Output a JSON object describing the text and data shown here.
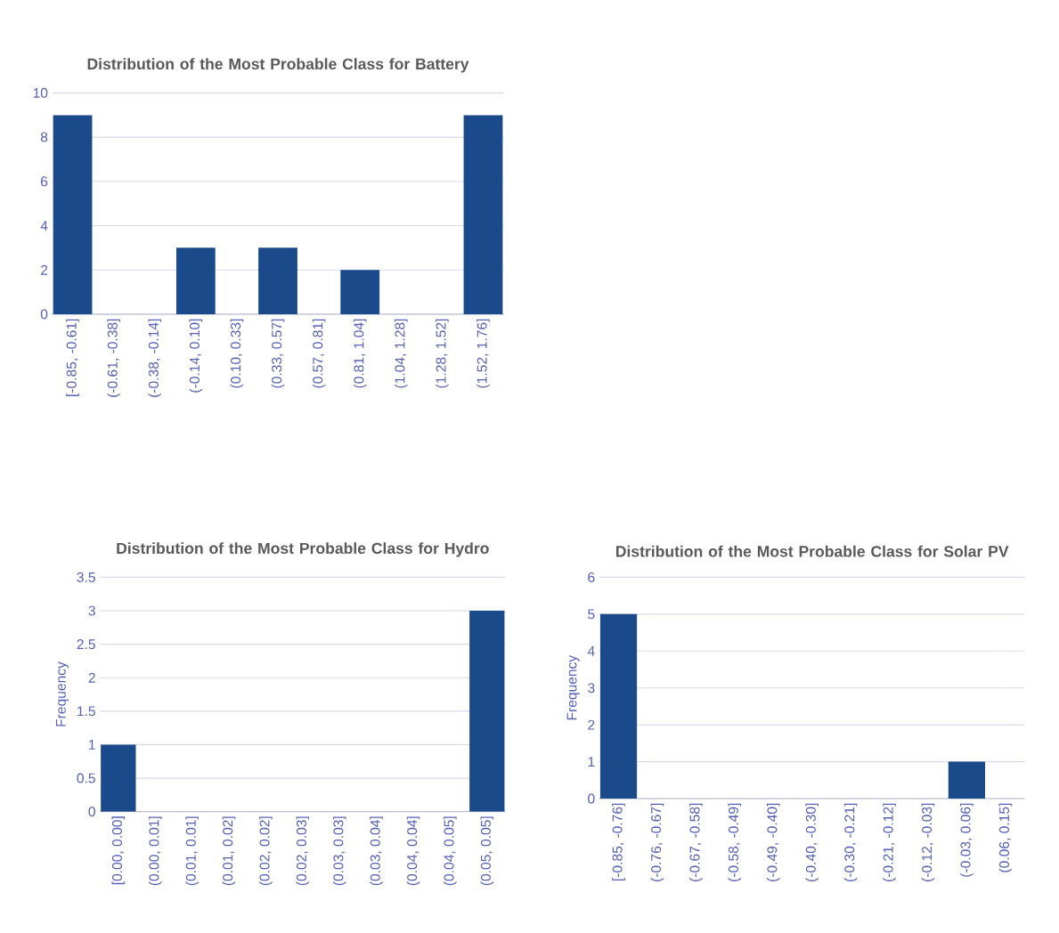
{
  "chart_data": [
    {
      "type": "bar",
      "title": "Distribution  of the Most Probable Class for Battery",
      "categories": [
        "[-0.85, -0.61]",
        "(-0.61, -0.38]",
        "(-0.38, -0.14]",
        "(-0.14, 0.10]",
        "(0.10, 0.33]",
        "(0.33, 0.57]",
        "(0.57, 0.81]",
        "(0.81, 1.04]",
        "(1.04, 1.28]",
        "(1.28, 1.52]",
        "(1.52, 1.76]"
      ],
      "values": [
        9,
        0,
        0,
        3,
        0,
        3,
        0,
        2,
        0,
        0,
        9
      ],
      "color": "#1b4a8a",
      "ylim": [
        0,
        10
      ],
      "yticks": [
        0,
        2,
        4,
        6,
        8,
        10
      ],
      "grid": "y"
    },
    {
      "type": "bar",
      "title": "Distribution of the Most Probable Class for Hydro",
      "ylabel": "Frequency",
      "categories": [
        "[0.00, 0.00]",
        "(0.00, 0.01]",
        "(0.01, 0.01]",
        "(0.01, 0.02]",
        "(0.02, 0.02]",
        "(0.02, 0.03]",
        "(0.03, 0.03]",
        "(0.03, 0.04]",
        "(0.04, 0.04]",
        "(0.04, 0.05]",
        "(0.05, 0.05]"
      ],
      "values": [
        1,
        0,
        0,
        0,
        0,
        0,
        0,
        0,
        0,
        0,
        3
      ],
      "color": "#1b4a8a",
      "ylim": [
        0,
        3.5
      ],
      "yticks": [
        0,
        0.5,
        1,
        1.5,
        2,
        2.5,
        3,
        3.5
      ],
      "grid": "y"
    },
    {
      "type": "bar",
      "title": "Distribution of the Most Probable Class for Solar PV",
      "ylabel": "Frequency",
      "categories": [
        "[-0.85, -0.76]",
        "(-0.76, -0.67]",
        "(-0.67, -0.58]",
        "(-0.58, -0.49]",
        "(-0.49, -0.40]",
        "(-0.40, -0.30]",
        "(-0.30, -0.21]",
        "(-0.21, -0.12]",
        "(-0.12, -0.03]",
        "(-0.03, 0.06]",
        "(0.06, 0.15]"
      ],
      "values": [
        5,
        0,
        0,
        0,
        0,
        0,
        0,
        0,
        0,
        1,
        0
      ],
      "color": "#1b4a8a",
      "ylim": [
        0,
        6
      ],
      "yticks": [
        0,
        1,
        2,
        3,
        4,
        5,
        6
      ],
      "grid": "y"
    }
  ]
}
